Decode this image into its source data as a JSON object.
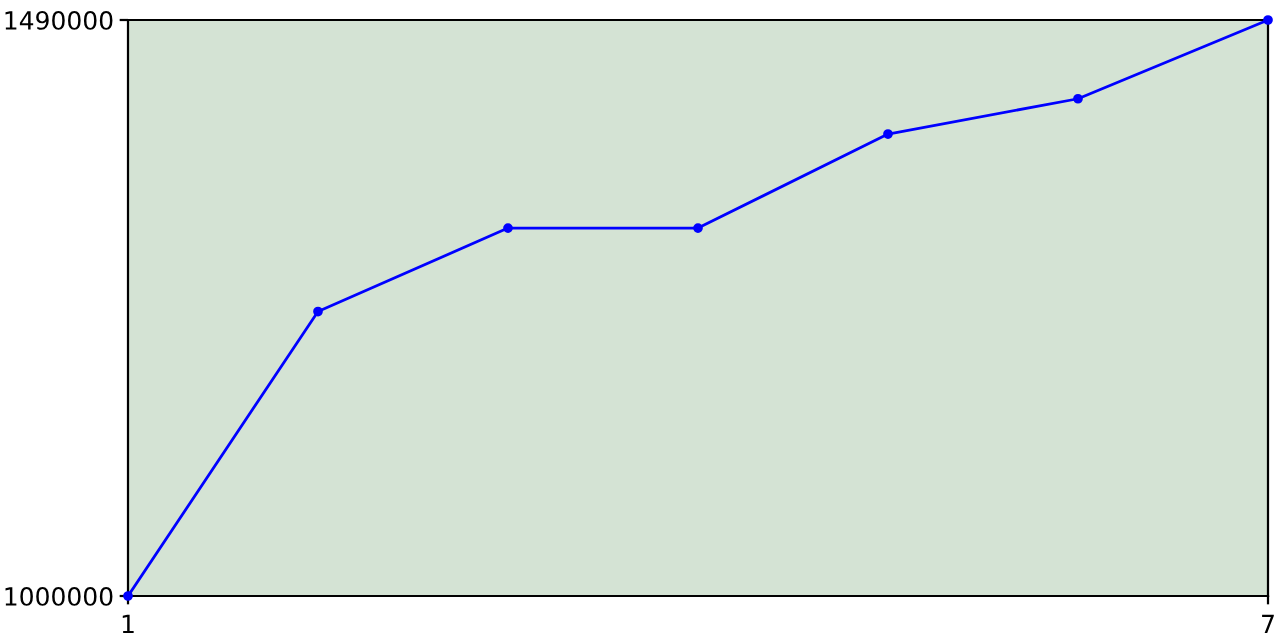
{
  "chart_data": {
    "type": "line",
    "x": [
      1,
      2,
      3,
      4,
      5,
      6,
      7
    ],
    "series": [
      {
        "color": "#0000ff",
        "values": [
          1000000,
          1242000,
          1313000,
          1313000,
          1393000,
          1423000,
          1490000
        ]
      }
    ],
    "xlim": [
      1,
      7
    ],
    "ylim": [
      1000000,
      1490000
    ],
    "xticks": [
      1,
      7
    ],
    "yticks": [
      1000000,
      1490000
    ],
    "marker": "circle",
    "line_style": "solid",
    "grid": false,
    "legend": false
  }
}
